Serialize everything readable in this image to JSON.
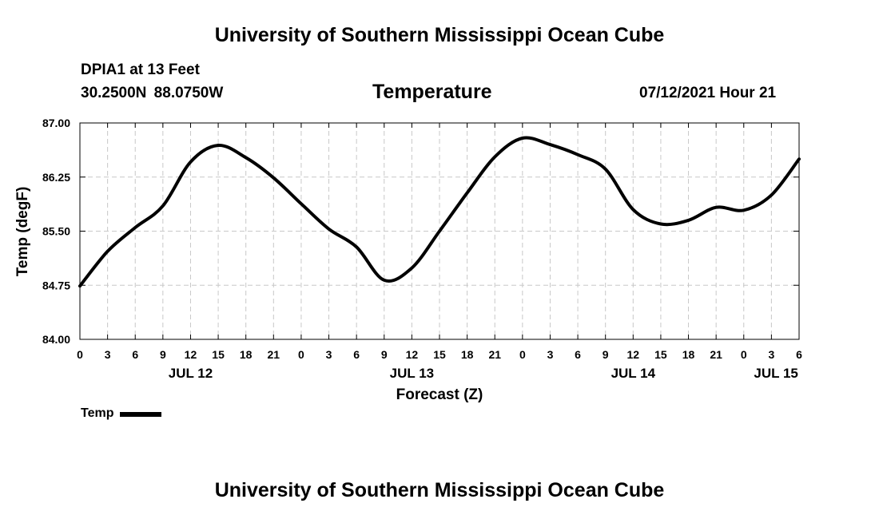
{
  "header": {
    "title": "University of Southern Mississippi Ocean Cube",
    "station": "DPIA1 at 13 Feet",
    "coordinates": "30.2500N  88.0750W",
    "chart_title": "Temperature",
    "datetime": "07/12/2021 Hour 21"
  },
  "footer": {
    "title": "University of Southern Mississippi Ocean Cube"
  },
  "legend": {
    "label": "Temp",
    "color": "#000000"
  },
  "chart_data": {
    "type": "line",
    "title": "Temperature",
    "xlabel": "Forecast (Z)",
    "ylabel": "Temp (degF)",
    "ylim": [
      84.0,
      87.0
    ],
    "xlim": [
      0,
      78
    ],
    "y_ticks": [
      "84.00",
      "84.75",
      "85.50",
      "86.25",
      "87.00"
    ],
    "y_tick_values": [
      84.0,
      84.75,
      85.5,
      86.25,
      87.0
    ],
    "x_tick_labels": [
      "0",
      "3",
      "6",
      "9",
      "12",
      "15",
      "18",
      "21",
      "0",
      "3",
      "6",
      "9",
      "12",
      "15",
      "18",
      "21",
      "0",
      "3",
      "6",
      "9",
      "12",
      "15",
      "18",
      "21",
      "0",
      "3",
      "6"
    ],
    "x_tick_hours": [
      0,
      3,
      6,
      9,
      12,
      15,
      18,
      21,
      24,
      27,
      30,
      33,
      36,
      39,
      42,
      45,
      48,
      51,
      54,
      57,
      60,
      63,
      66,
      69,
      72,
      75,
      78
    ],
    "date_labels": [
      {
        "text": "JUL 12",
        "hour": 12
      },
      {
        "text": "JUL 13",
        "hour": 36
      },
      {
        "text": "JUL 14",
        "hour": 60
      },
      {
        "text": "JUL 15",
        "hour": 75.5
      }
    ],
    "grid": true,
    "series": [
      {
        "name": "Temp",
        "color": "#000000",
        "x": [
          0,
          3,
          6,
          9,
          12,
          15,
          18,
          21,
          24,
          27,
          30,
          33,
          36,
          39,
          42,
          45,
          48,
          51,
          54,
          57,
          60,
          63,
          66,
          69,
          72,
          75,
          78
        ],
        "values": [
          84.74,
          85.22,
          85.55,
          85.85,
          86.46,
          86.69,
          86.52,
          86.24,
          85.88,
          85.53,
          85.28,
          84.82,
          84.99,
          85.5,
          86.03,
          86.53,
          86.79,
          86.7,
          86.56,
          86.36,
          85.8,
          85.6,
          85.65,
          85.83,
          85.79,
          86.0,
          86.5
        ]
      }
    ]
  }
}
